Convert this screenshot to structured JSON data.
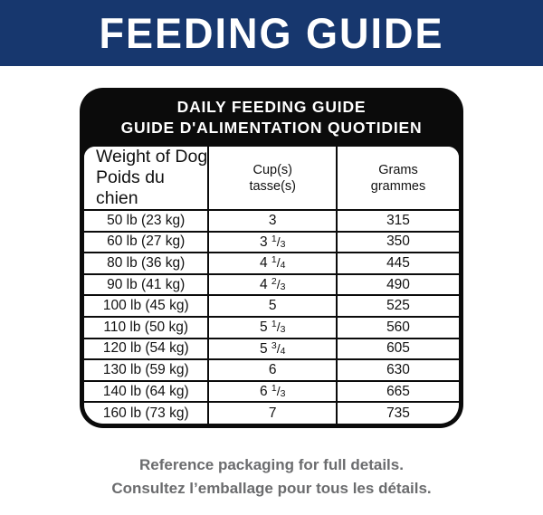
{
  "banner": {
    "title": "FEEDING GUIDE"
  },
  "card": {
    "title_en": "DAILY FEEDING GUIDE",
    "title_fr": "GUIDE D'ALIMENTATION QUOTIDIEN"
  },
  "table": {
    "columns": [
      {
        "en": "Weight of Dog",
        "fr": "Poids du chien"
      },
      {
        "en": "Cup(s)",
        "fr": "tasse(s)"
      },
      {
        "en": "Grams",
        "fr": "grammes"
      }
    ],
    "rows": [
      {
        "weight": "50 lb (23 kg)",
        "cup": {
          "whole": "3"
        },
        "grams": "315"
      },
      {
        "weight": "60 lb (27 kg)",
        "cup": {
          "whole": "3",
          "num": "1",
          "den": "3"
        },
        "grams": "350"
      },
      {
        "weight": "80 lb (36 kg)",
        "cup": {
          "whole": "4",
          "num": "1",
          "den": "4"
        },
        "grams": "445"
      },
      {
        "weight": "90 lb (41 kg)",
        "cup": {
          "whole": "4",
          "num": "2",
          "den": "3"
        },
        "grams": "490"
      },
      {
        "weight": "100 lb (45 kg)",
        "cup": {
          "whole": "5"
        },
        "grams": "525"
      },
      {
        "weight": "110 lb (50 kg)",
        "cup": {
          "whole": "5",
          "num": "1",
          "den": "3"
        },
        "grams": "560"
      },
      {
        "weight": "120 lb (54 kg)",
        "cup": {
          "whole": "5",
          "num": "3",
          "den": "4"
        },
        "grams": "605"
      },
      {
        "weight": "130 lb (59 kg)",
        "cup": {
          "whole": "6"
        },
        "grams": "630"
      },
      {
        "weight": "140 lb (64 kg)",
        "cup": {
          "whole": "6",
          "num": "1",
          "den": "3"
        },
        "grams": "665"
      },
      {
        "weight": "160 lb (73 kg)",
        "cup": {
          "whole": "7"
        },
        "grams": "735"
      }
    ]
  },
  "footer": {
    "note_en": "Reference packaging for full details.",
    "note_fr": "Consultez l’emballage pour tous les détails."
  },
  "colors": {
    "banner_blue": "#17376e",
    "card_black": "#0b0b0b",
    "footer_gray": "#6b6c6e"
  }
}
